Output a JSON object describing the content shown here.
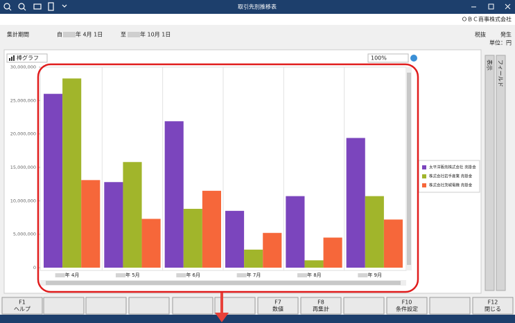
{
  "window": {
    "title": "取引先別推移表",
    "company": "ＯＢＣ商事株式会社"
  },
  "header": {
    "period_label": "集計期間",
    "from_prefix": "自",
    "from_date": "年  4月 1日",
    "to_prefix": "至",
    "to_date": "年 10月 1日",
    "tax": "税抜",
    "basis": "発生",
    "unit": "単位：円"
  },
  "toolbar": {
    "chart_type": "棒グラフ",
    "zoom": "100%"
  },
  "side_tabs": [
    "表示",
    "フィールド"
  ],
  "function_keys": {
    "f1": {
      "key": "F1",
      "label": "ヘルプ"
    },
    "f7": {
      "key": "F7",
      "label": "数値"
    },
    "f8": {
      "key": "F8",
      "label": "再集計"
    },
    "f10": {
      "key": "F10",
      "label": "条件設定"
    },
    "f12": {
      "key": "F12",
      "label": "閉じる"
    }
  },
  "chart_data": {
    "type": "bar",
    "categories": [
      "年  4月",
      "年  5月",
      "年  6月",
      "年  7月",
      "年  8月",
      "年  9月"
    ],
    "series": [
      {
        "name": "太平洋販売株式会社 売掛金",
        "color": "#7b45bd",
        "values": [
          26000000,
          12800000,
          21900000,
          8500000,
          10700000,
          19400000
        ]
      },
      {
        "name": "株式会社岩手産業 売掛金",
        "color": "#a1b52b",
        "values": [
          28300000,
          15800000,
          8800000,
          2700000,
          1100000,
          10700000
        ]
      },
      {
        "name": "株式会社茨城電機 売掛金",
        "color": "#f6673a",
        "values": [
          13100000,
          7300000,
          11500000,
          5200000,
          4500000,
          7200000
        ]
      }
    ],
    "ylim": [
      0,
      30000000
    ],
    "yticks": [
      0,
      {
        "value": 5000000,
        "label": "5,000,000"
      },
      {
        "value": 10000000,
        "label": "10,000,000"
      },
      {
        "value": 15000000,
        "label": "15,000,000"
      },
      {
        "value": 20000000,
        "label": "20,000,000"
      },
      {
        "value": 25000000,
        "label": "25,000,000"
      },
      {
        "value": 30000000,
        "label": "30,000,000"
      }
    ],
    "grid": false,
    "legend": "right"
  }
}
